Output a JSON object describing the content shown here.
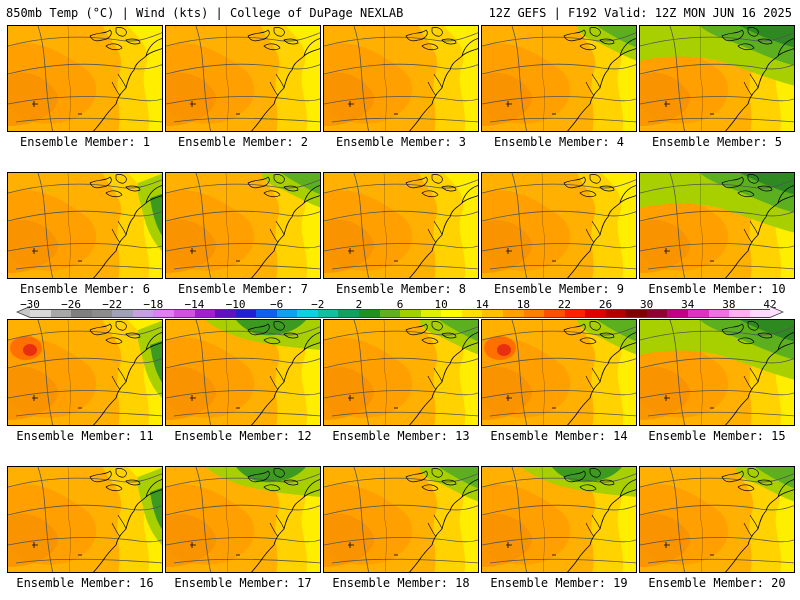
{
  "header": {
    "left": "850mb Temp (°C) | Wind (kts) | College of DuPage NEXLAB",
    "right": "12Z GEFS | F192 Valid: 12Z MON JUN 16 2025"
  },
  "members": [
    {
      "label": "Ensemble Member: 1",
      "green": "none",
      "red": false
    },
    {
      "label": "Ensemble Member: 2",
      "green": "none",
      "red": false
    },
    {
      "label": "Ensemble Member: 3",
      "green": "none",
      "red": false
    },
    {
      "label": "Ensemble Member: 4",
      "green": "ne",
      "red": false
    },
    {
      "label": "Ensemble Member: 5",
      "green": "strong",
      "red": false
    },
    {
      "label": "Ensemble Member: 6",
      "green": "east",
      "red": false
    },
    {
      "label": "Ensemble Member: 7",
      "green": "ne",
      "red": false
    },
    {
      "label": "Ensemble Member: 8",
      "green": "none",
      "red": false
    },
    {
      "label": "Ensemble Member: 9",
      "green": "none",
      "red": false
    },
    {
      "label": "Ensemble Member: 10",
      "green": "strong",
      "red": false
    },
    {
      "label": "Ensemble Member: 11",
      "green": "east",
      "red": true
    },
    {
      "label": "Ensemble Member: 12",
      "green": "top",
      "red": false
    },
    {
      "label": "Ensemble Member: 13",
      "green": "ne",
      "red": false
    },
    {
      "label": "Ensemble Member: 14",
      "green": "ne",
      "red": true
    },
    {
      "label": "Ensemble Member: 15",
      "green": "strong",
      "red": false
    },
    {
      "label": "Ensemble Member: 16",
      "green": "east",
      "red": false
    },
    {
      "label": "Ensemble Member: 17",
      "green": "top",
      "red": false
    },
    {
      "label": "Ensemble Member: 18",
      "green": "ne",
      "red": false
    },
    {
      "label": "Ensemble Member: 19",
      "green": "top",
      "red": false
    },
    {
      "label": "Ensemble Member: 20",
      "green": "ne",
      "red": false
    }
  ],
  "colorbar": {
    "ticks": [
      "−30",
      "−26",
      "−22",
      "−18",
      "−14",
      "−10",
      "−6",
      "−2",
      "2",
      "6",
      "10",
      "14",
      "18",
      "22",
      "26",
      "30",
      "34",
      "38",
      "42"
    ],
    "colors": [
      "#d9d9d9",
      "#a8a8a8",
      "#7f7f7f",
      "#8c8c8c",
      "#a0a0b8",
      "#c8a0e0",
      "#e080f0",
      "#d050e0",
      "#a020d0",
      "#6010c0",
      "#2020d0",
      "#1060f0",
      "#10a0f0",
      "#10d0e0",
      "#10c0a0",
      "#10a060",
      "#209020",
      "#60b020",
      "#a0d000",
      "#e0f000",
      "#ffff00",
      "#ffe000",
      "#ffc000",
      "#ffa000",
      "#ff8000",
      "#ff5000",
      "#ff2000",
      "#e00000",
      "#b00000",
      "#800000",
      "#900030",
      "#c00080",
      "#e030c0",
      "#f070e0",
      "#ffb0f0",
      "#ffd8ff"
    ]
  }
}
